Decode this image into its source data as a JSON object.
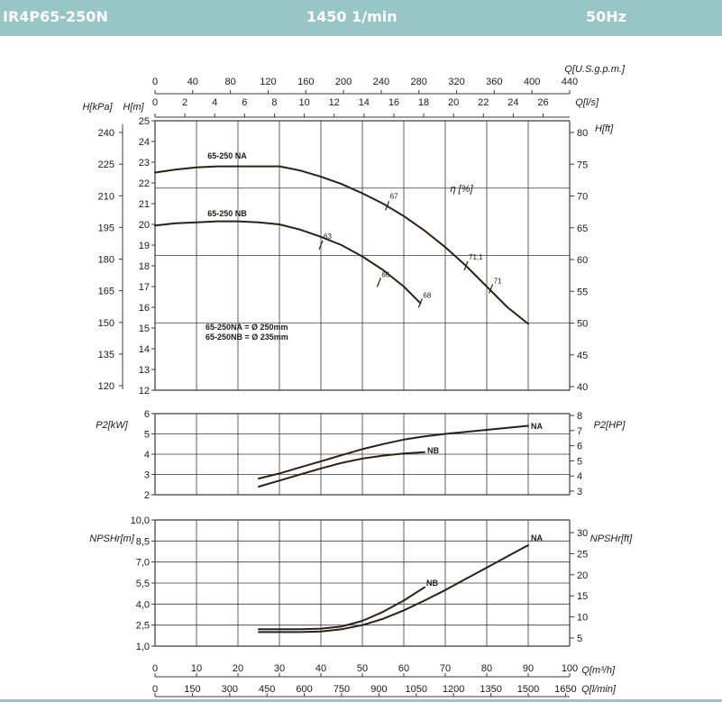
{
  "header": {
    "model": "IR4P65-250N",
    "speed": "1450 1/min",
    "frequency": "50Hz"
  },
  "colors": {
    "header_bg": "#98c5c6",
    "curve": "#2b2015",
    "grid": "#3a3a3a"
  },
  "chart_data": [
    {
      "type": "line",
      "name": "head",
      "xlim": [
        0,
        100
      ],
      "ylim": [
        12,
        25
      ],
      "left_labels": [
        "H[kPa]",
        "H[m]"
      ],
      "right_label": "H[ft]",
      "top_label_1": "Q[U.S.g.p.m.]",
      "top_label_2": "Q[l/s]",
      "x_top1_ticks": [
        0,
        40,
        80,
        120,
        160,
        200,
        240,
        280,
        320,
        360,
        400,
        440
      ],
      "x_top2_ticks": [
        0,
        2,
        4,
        6,
        8,
        10,
        12,
        14,
        16,
        18,
        20,
        22,
        24,
        26
      ],
      "y_ticks": [
        12,
        13,
        14,
        15,
        16,
        17,
        18,
        19,
        20,
        21,
        22,
        23,
        24,
        25
      ],
      "kpa_ticks": [
        120,
        135,
        150,
        165,
        180,
        195,
        210,
        225,
        240
      ],
      "ft_ticks": [
        40,
        45,
        50,
        55,
        60,
        65,
        70,
        75,
        80
      ],
      "efficiency_label": "η [%]",
      "series": [
        {
          "name": "65-250 NA",
          "x": [
            0,
            5,
            10,
            15,
            20,
            25,
            30,
            35,
            40,
            45,
            50,
            55,
            60,
            65,
            70,
            75,
            80,
            85,
            90
          ],
          "y": [
            22.5,
            22.65,
            22.75,
            22.8,
            22.8,
            22.8,
            22.8,
            22.6,
            22.3,
            21.95,
            21.5,
            21.0,
            20.4,
            19.7,
            18.9,
            18.0,
            17.0,
            16.0,
            15.2
          ]
        },
        {
          "name": "65-250 NB",
          "x": [
            0,
            5,
            10,
            15,
            20,
            25,
            30,
            35,
            40,
            45,
            50,
            55,
            60,
            64
          ],
          "y": [
            19.95,
            20.05,
            20.1,
            20.15,
            20.15,
            20.1,
            20.0,
            19.75,
            19.4,
            19.0,
            18.45,
            17.8,
            17.0,
            16.2
          ]
        }
      ],
      "efficiency_marks": [
        {
          "label": "63",
          "x": 40,
          "y": 19.0
        },
        {
          "label": "66",
          "x": 54,
          "y": 17.2
        },
        {
          "label": "67",
          "x": 56,
          "y": 20.9
        },
        {
          "label": "68",
          "x": 64,
          "y": 16.2
        },
        {
          "label": "71,1",
          "x": 75,
          "y": 18.0
        },
        {
          "label": "71",
          "x": 81,
          "y": 16.9
        }
      ],
      "annotations": [
        "65-250NA = Ø 250mm",
        "65-250NB = Ø 235mm"
      ]
    },
    {
      "type": "line",
      "name": "power",
      "xlim": [
        0,
        100
      ],
      "ylim": [
        2,
        6
      ],
      "left_label": "P2[kW]",
      "right_label": "P2[HP]",
      "y_ticks": [
        2,
        3,
        4,
        5,
        6
      ],
      "hp_ticks": [
        3,
        4,
        5,
        6,
        7,
        8
      ],
      "series": [
        {
          "name": "NA",
          "x": [
            25,
            30,
            35,
            40,
            45,
            50,
            55,
            60,
            65,
            70,
            75,
            80,
            85,
            90
          ],
          "y": [
            2.8,
            3.05,
            3.35,
            3.65,
            3.95,
            4.25,
            4.5,
            4.72,
            4.88,
            5.0,
            5.1,
            5.2,
            5.3,
            5.4
          ]
        },
        {
          "name": "NB",
          "x": [
            25,
            30,
            35,
            40,
            45,
            50,
            55,
            60,
            65
          ],
          "y": [
            2.4,
            2.7,
            3.0,
            3.3,
            3.57,
            3.78,
            3.93,
            4.03,
            4.1
          ]
        }
      ]
    },
    {
      "type": "line",
      "name": "npsh",
      "xlim": [
        0,
        100
      ],
      "ylim": [
        1,
        10
      ],
      "left_label": "NPSHr[m]",
      "right_label": "NPSHr[ft]",
      "y_ticks": [
        "10,0",
        "8,5",
        "7,0",
        "5,5",
        "4,0",
        "2,5",
        "1,0"
      ],
      "ft_ticks": [
        5,
        10,
        15,
        20,
        25,
        30
      ],
      "x_bottom1_label": "Q[m³/h]",
      "x_bottom2_label": "Q[l/min]",
      "x_bottom1_ticks": [
        0,
        10,
        20,
        30,
        40,
        50,
        60,
        70,
        80,
        90,
        100
      ],
      "x_bottom2_ticks": [
        0,
        150,
        300,
        450,
        600,
        750,
        900,
        1050,
        1200,
        1350,
        1500,
        1650
      ],
      "series": [
        {
          "name": "NA",
          "x": [
            25,
            30,
            35,
            40,
            45,
            50,
            55,
            60,
            65,
            70,
            75,
            80,
            85,
            90
          ],
          "y": [
            2.0,
            2.0,
            2.0,
            2.05,
            2.2,
            2.5,
            2.95,
            3.55,
            4.25,
            5.0,
            5.8,
            6.6,
            7.4,
            8.2
          ]
        },
        {
          "name": "NB",
          "x": [
            25,
            30,
            35,
            40,
            45,
            50,
            55,
            60,
            65
          ],
          "y": [
            2.2,
            2.2,
            2.2,
            2.25,
            2.4,
            2.8,
            3.45,
            4.25,
            5.2
          ]
        }
      ]
    }
  ]
}
